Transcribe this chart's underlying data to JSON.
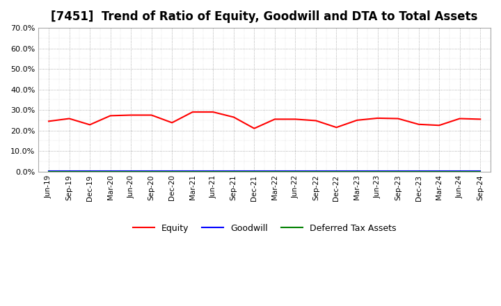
{
  "title": "[7451]  Trend of Ratio of Equity, Goodwill and DTA to Total Assets",
  "x_labels": [
    "Jun-19",
    "Sep-19",
    "Dec-19",
    "Mar-20",
    "Jun-20",
    "Sep-20",
    "Dec-20",
    "Mar-21",
    "Jun-21",
    "Sep-21",
    "Dec-21",
    "Mar-22",
    "Jun-22",
    "Sep-22",
    "Dec-22",
    "Mar-23",
    "Jun-23",
    "Sep-23",
    "Dec-23",
    "Mar-24",
    "Jun-24",
    "Sep-24"
  ],
  "equity": [
    24.5,
    25.8,
    22.8,
    27.2,
    27.5,
    27.5,
    23.8,
    29.0,
    29.0,
    26.5,
    21.0,
    25.5,
    25.5,
    24.8,
    21.5,
    25.0,
    26.0,
    25.8,
    23.0,
    22.5,
    25.8,
    25.5
  ],
  "goodwill": [
    0.3,
    0.3,
    0.3,
    0.3,
    0.3,
    0.3,
    0.3,
    0.3,
    0.3,
    0.3,
    0.3,
    0.3,
    0.3,
    0.3,
    0.3,
    0.3,
    0.3,
    0.3,
    0.3,
    0.3,
    0.3,
    0.3
  ],
  "dta": [
    0.0,
    0.0,
    0.0,
    0.0,
    0.0,
    0.0,
    0.0,
    0.0,
    0.0,
    0.0,
    0.0,
    0.0,
    0.0,
    0.0,
    0.0,
    0.0,
    0.0,
    0.0,
    0.0,
    0.0,
    0.0,
    0.0
  ],
  "equity_color": "#FF0000",
  "goodwill_color": "#0000FF",
  "dta_color": "#008000",
  "ylim": [
    0,
    70
  ],
  "yticks": [
    0,
    10,
    20,
    30,
    40,
    50,
    60,
    70
  ],
  "background_color": "#FFFFFF",
  "plot_bg_color": "#FFFFFF",
  "grid_color": "#999999",
  "title_fontsize": 12,
  "legend_labels": [
    "Equity",
    "Goodwill",
    "Deferred Tax Assets"
  ]
}
